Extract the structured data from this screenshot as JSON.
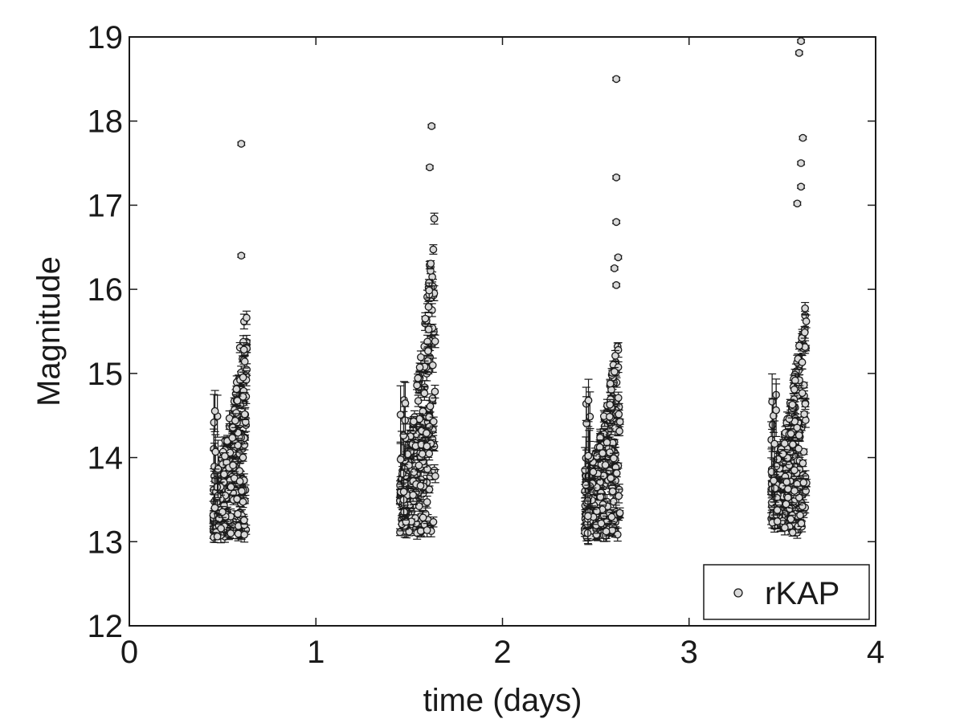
{
  "chart_data": {
    "type": "scatter",
    "xlabel": "time (days)",
    "ylabel": "Magnitude",
    "xlim": [
      0,
      4
    ],
    "ylim": [
      12,
      19
    ],
    "xticks": [
      0,
      1,
      2,
      3,
      4
    ],
    "yticks": [
      12,
      13,
      14,
      15,
      16,
      17,
      18,
      19
    ],
    "grid": false,
    "legend_position": "bottom-right",
    "series": [
      {
        "name": "rKAP",
        "marker": "circle",
        "error_bars": true,
        "nights": [
          {
            "t_start": 0.45,
            "t_end": 0.63,
            "mag_min": 13.0,
            "mag_max": 16.0,
            "outliers": [
              [
                0.6,
                17.73
              ],
              [
                0.6,
                16.4
              ]
            ]
          },
          {
            "t_start": 1.45,
            "t_end": 1.64,
            "mag_min": 13.05,
            "mag_max": 17.15,
            "outliers": [
              [
                1.62,
                17.94
              ],
              [
                1.61,
                17.45
              ]
            ]
          },
          {
            "t_start": 2.44,
            "t_end": 2.63,
            "mag_min": 13.0,
            "mag_max": 15.65,
            "outliers": [
              [
                2.61,
                18.5
              ],
              [
                2.61,
                17.33
              ],
              [
                2.61,
                16.8
              ],
              [
                2.62,
                16.38
              ],
              [
                2.6,
                16.25
              ],
              [
                2.61,
                16.05
              ]
            ]
          },
          {
            "t_start": 3.44,
            "t_end": 3.63,
            "mag_min": 13.05,
            "mag_max": 16.1,
            "outliers": [
              [
                3.6,
                18.95
              ],
              [
                3.59,
                18.81
              ],
              [
                3.61,
                17.8
              ],
              [
                3.6,
                17.5
              ],
              [
                3.6,
                17.22
              ],
              [
                3.58,
                17.02
              ]
            ]
          }
        ]
      }
    ]
  },
  "colors": {
    "marker_edge": "#1a1a1a",
    "marker_fill": "#d9d9d9",
    "axis": "#1a1a1a",
    "background": "#ffffff"
  }
}
